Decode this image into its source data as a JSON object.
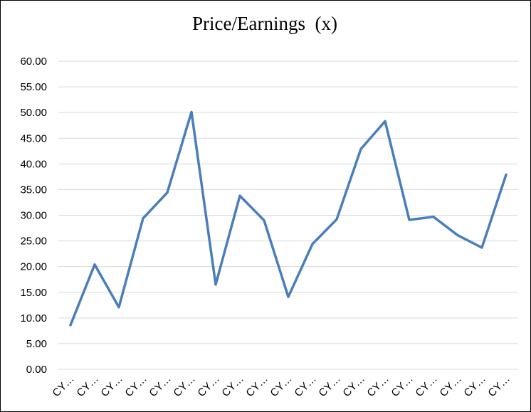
{
  "chart_data": {
    "type": "line",
    "title": "Price/Earnings  (x)",
    "xlabel": "",
    "ylabel": "",
    "ylim": [
      0,
      60
    ],
    "ytick_step": 5,
    "yticks": [
      "0.00",
      "5.00",
      "10.00",
      "15.00",
      "20.00",
      "25.00",
      "30.00",
      "35.00",
      "40.00",
      "45.00",
      "50.00",
      "55.00",
      "60.00"
    ],
    "grid": true,
    "legend": "none",
    "categories": [
      "CY…",
      "CY…",
      "CY…",
      "CY…",
      "CY…",
      "CY…",
      "CY…",
      "CY…",
      "CY…",
      "CY…",
      "CY…",
      "CY…",
      "CY…",
      "CY…",
      "CY…",
      "CY…",
      "CY…",
      "CY…",
      "CY…"
    ],
    "series": [
      {
        "values": [
          8.6,
          20.4,
          12.1,
          29.4,
          34.4,
          50.1,
          16.5,
          33.8,
          29.0,
          14.1,
          24.4,
          29.2,
          42.9,
          48.3,
          29.1,
          29.7,
          26.1,
          23.7,
          37.9
        ],
        "color": "#4a7ebb"
      }
    ],
    "colors": {
      "line": "#4a7ebb",
      "grid": "#d9d9d9",
      "text": "#000000"
    }
  }
}
